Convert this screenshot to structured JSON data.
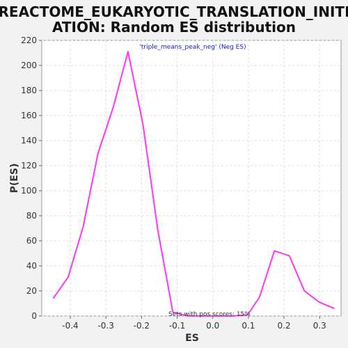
{
  "chart_data": {
    "type": "line",
    "title_lines": [
      "REACTOME_EUKARYOTIC_TRANSLATION_INITI",
      "ATION: Random ES distribution"
    ],
    "xlabel": "ES",
    "ylabel": "P(ES)",
    "xlim": [
      -0.48,
      0.36
    ],
    "ylim": [
      0,
      220
    ],
    "x_ticks": [
      -0.4,
      -0.3,
      -0.2,
      -0.1,
      0.0,
      0.1,
      0.2,
      0.3
    ],
    "x_tick_labels": [
      "-0.4",
      "-0.3",
      "-0.2",
      "-0.1",
      "0.0",
      "0.1",
      "0.2",
      "0.3"
    ],
    "y_ticks": [
      0,
      20,
      40,
      60,
      80,
      100,
      120,
      140,
      160,
      180,
      200,
      220
    ],
    "y_tick_labels": [
      "0",
      "20",
      "40",
      "60",
      "80",
      "100",
      "120",
      "140",
      "160",
      "180",
      "200",
      "220"
    ],
    "grid": true,
    "series_label": "'triple_means_peak_neg' (Neg ES)",
    "note": "Sets with pos scores: 15%",
    "colors": {
      "line": "#ff33ff",
      "series_label": "#1a1ad8",
      "plot_bg": "#ffffff",
      "page_bg": "#f2f2f2",
      "grid": "#dddddd"
    },
    "series": [
      {
        "x": [
          -0.448,
          -0.406,
          -0.364,
          -0.322,
          -0.28,
          -0.238,
          -0.196,
          -0.154,
          -0.112,
          -0.07,
          -0.028,
          0.014,
          0.056,
          0.098,
          0.131,
          0.173,
          0.215,
          0.257,
          0.299,
          0.341
        ],
        "values": [
          14,
          31,
          71,
          130,
          166,
          211,
          153,
          68,
          3,
          0,
          0,
          0,
          0,
          1,
          15,
          52,
          48,
          20,
          11,
          6
        ]
      }
    ]
  }
}
